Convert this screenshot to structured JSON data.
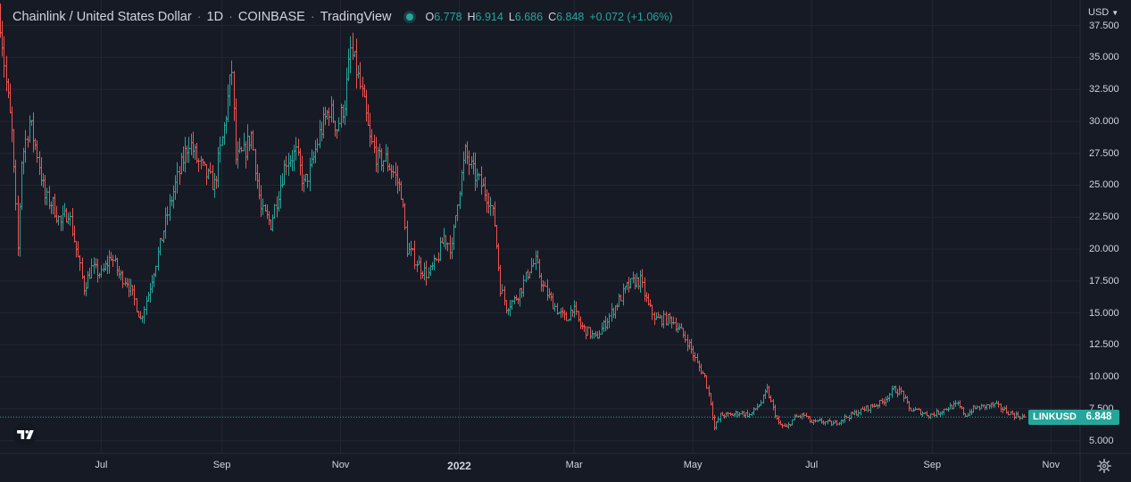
{
  "header": {
    "symbol_name": "Chainlink / United States Dollar",
    "interval": "1D",
    "exchange": "COINBASE",
    "platform": "TradingView",
    "ohlc": {
      "open_label": "O",
      "open": "6.778",
      "high_label": "H",
      "high": "6.914",
      "low_label": "L",
      "low": "6.686",
      "close_label": "C",
      "close": "6.848",
      "change": "+0.072 (+1.06%)"
    }
  },
  "price_scale": {
    "currency": "USD"
  },
  "last_price": {
    "symbol": "LINKUSD",
    "value": "6.848"
  },
  "colors": {
    "background": "#161a25",
    "grid": "#242733",
    "up": "#26a69a",
    "down": "#ef5350",
    "text": "#d1d4dc"
  },
  "icons": {
    "logo": "tradingview-logo-icon",
    "settings": "gear-icon",
    "dropdown": "chevron-down-icon"
  },
  "chart_data": {
    "type": "ohlc",
    "title": "Chainlink / United States Dollar · 1D · COINBASE",
    "ylim": [
      4.0,
      39.5
    ],
    "x_range": [
      "2021-05-10",
      "2022-11-16"
    ],
    "ytick_labels": [
      "5.000",
      "7.500",
      "10.000",
      "12.500",
      "15.000",
      "17.500",
      "20.000",
      "22.500",
      "25.000",
      "27.500",
      "30.000",
      "32.500",
      "35.000",
      "37.500"
    ],
    "y_ticks": [
      5,
      7.5,
      10,
      12.5,
      15,
      17.5,
      20,
      22.5,
      25,
      27.5,
      30,
      32.5,
      35,
      37.5
    ],
    "xtick_labels": [
      "Jul",
      "Sep",
      "Nov",
      "2022",
      "Mar",
      "May",
      "Jul",
      "Sep",
      "Nov"
    ],
    "x_ticks": [
      "2021-07-01",
      "2021-09-01",
      "2021-11-01",
      "2022-01-01",
      "2022-03-01",
      "2022-05-01",
      "2022-07-01",
      "2022-09-01",
      "2022-11-01"
    ],
    "grid": true,
    "last_close": 6.848,
    "series": [
      {
        "date_start": "2021-05-10",
        "date_end": "2022-10-18",
        "close_path": [
          [
            "2021-05-10",
            38.0
          ],
          [
            "2021-05-13",
            33.0
          ],
          [
            "2021-05-16",
            29.0
          ],
          [
            "2021-05-19",
            20.0
          ],
          [
            "2021-05-21",
            27.0
          ],
          [
            "2021-05-25",
            30.0
          ],
          [
            "2021-05-29",
            27.5
          ],
          [
            "2021-06-02",
            24.0
          ],
          [
            "2021-06-06",
            23.5
          ],
          [
            "2021-06-10",
            22.0
          ],
          [
            "2021-06-14",
            23.0
          ],
          [
            "2021-06-18",
            20.0
          ],
          [
            "2021-06-22",
            17.0
          ],
          [
            "2021-06-26",
            18.5
          ],
          [
            "2021-07-01",
            18.0
          ],
          [
            "2021-07-06",
            19.5
          ],
          [
            "2021-07-10",
            18.0
          ],
          [
            "2021-07-14",
            17.5
          ],
          [
            "2021-07-18",
            16.0
          ],
          [
            "2021-07-21",
            14.5
          ],
          [
            "2021-07-25",
            16.5
          ],
          [
            "2021-07-29",
            19.0
          ],
          [
            "2021-08-02",
            21.5
          ],
          [
            "2021-08-06",
            24.0
          ],
          [
            "2021-08-10",
            26.0
          ],
          [
            "2021-08-15",
            28.5
          ],
          [
            "2021-08-19",
            27.0
          ],
          [
            "2021-08-23",
            26.0
          ],
          [
            "2021-08-28",
            25.0
          ],
          [
            "2021-09-02",
            29.5
          ],
          [
            "2021-09-06",
            34.0
          ],
          [
            "2021-09-08",
            27.0
          ],
          [
            "2021-09-12",
            27.5
          ],
          [
            "2021-09-16",
            29.0
          ],
          [
            "2021-09-21",
            23.0
          ],
          [
            "2021-09-26",
            22.0
          ],
          [
            "2021-09-30",
            24.5
          ],
          [
            "2021-10-04",
            27.0
          ],
          [
            "2021-10-09",
            27.5
          ],
          [
            "2021-10-13",
            25.0
          ],
          [
            "2021-10-17",
            26.5
          ],
          [
            "2021-10-21",
            29.0
          ],
          [
            "2021-10-26",
            31.0
          ],
          [
            "2021-10-30",
            29.5
          ],
          [
            "2021-11-03",
            31.5
          ],
          [
            "2021-11-06",
            35.5
          ],
          [
            "2021-11-09",
            34.0
          ],
          [
            "2021-11-12",
            32.0
          ],
          [
            "2021-11-16",
            28.5
          ],
          [
            "2021-11-20",
            27.0
          ],
          [
            "2021-11-24",
            27.0
          ],
          [
            "2021-11-28",
            26.0
          ],
          [
            "2021-12-02",
            24.5
          ],
          [
            "2021-12-05",
            20.0
          ],
          [
            "2021-12-08",
            19.5
          ],
          [
            "2021-12-12",
            18.5
          ],
          [
            "2021-12-16",
            18.0
          ],
          [
            "2021-12-20",
            19.0
          ],
          [
            "2021-12-24",
            21.0
          ],
          [
            "2021-12-28",
            20.0
          ],
          [
            "2021-12-31",
            24.0
          ],
          [
            "2022-01-04",
            27.5
          ],
          [
            "2022-01-08",
            26.0
          ],
          [
            "2022-01-12",
            25.0
          ],
          [
            "2022-01-16",
            24.0
          ],
          [
            "2022-01-19",
            22.0
          ],
          [
            "2022-01-22",
            17.0
          ],
          [
            "2022-01-25",
            15.5
          ],
          [
            "2022-01-29",
            16.0
          ],
          [
            "2022-02-02",
            17.0
          ],
          [
            "2022-02-06",
            18.5
          ],
          [
            "2022-02-09",
            19.0
          ],
          [
            "2022-02-13",
            17.0
          ],
          [
            "2022-02-17",
            16.0
          ],
          [
            "2022-02-21",
            15.0
          ],
          [
            "2022-02-25",
            14.5
          ],
          [
            "2022-02-28",
            15.5
          ],
          [
            "2022-03-04",
            14.0
          ],
          [
            "2022-03-08",
            13.5
          ],
          [
            "2022-03-12",
            13.0
          ],
          [
            "2022-03-16",
            14.0
          ],
          [
            "2022-03-20",
            15.0
          ],
          [
            "2022-03-24",
            16.0
          ],
          [
            "2022-03-28",
            17.0
          ],
          [
            "2022-04-01",
            17.5
          ],
          [
            "2022-04-04",
            17.5
          ],
          [
            "2022-04-08",
            15.5
          ],
          [
            "2022-04-12",
            14.5
          ],
          [
            "2022-04-16",
            14.5
          ],
          [
            "2022-04-20",
            14.5
          ],
          [
            "2022-04-25",
            13.5
          ],
          [
            "2022-04-29",
            12.5
          ],
          [
            "2022-05-03",
            11.0
          ],
          [
            "2022-05-07",
            10.0
          ],
          [
            "2022-05-10",
            8.0
          ],
          [
            "2022-05-12",
            6.0
          ],
          [
            "2022-05-15",
            7.0
          ],
          [
            "2022-05-20",
            7.0
          ],
          [
            "2022-05-25",
            7.2
          ],
          [
            "2022-05-30",
            7.0
          ],
          [
            "2022-06-05",
            8.0
          ],
          [
            "2022-06-08",
            9.0
          ],
          [
            "2022-06-11",
            7.5
          ],
          [
            "2022-06-14",
            6.3
          ],
          [
            "2022-06-18",
            6.0
          ],
          [
            "2022-06-22",
            6.8
          ],
          [
            "2022-06-27",
            7.0
          ],
          [
            "2022-07-01",
            6.4
          ],
          [
            "2022-07-06",
            6.5
          ],
          [
            "2022-07-12",
            6.3
          ],
          [
            "2022-07-18",
            6.8
          ],
          [
            "2022-07-24",
            7.2
          ],
          [
            "2022-07-30",
            7.6
          ],
          [
            "2022-08-06",
            8.0
          ],
          [
            "2022-08-12",
            9.0
          ],
          [
            "2022-08-16",
            8.8
          ],
          [
            "2022-08-20",
            7.5
          ],
          [
            "2022-08-25",
            7.3
          ],
          [
            "2022-08-30",
            7.0
          ],
          [
            "2022-09-04",
            7.2
          ],
          [
            "2022-09-09",
            7.6
          ],
          [
            "2022-09-14",
            7.8
          ],
          [
            "2022-09-18",
            7.0
          ],
          [
            "2022-09-22",
            7.5
          ],
          [
            "2022-09-28",
            7.7
          ],
          [
            "2022-10-03",
            7.8
          ],
          [
            "2022-10-08",
            7.4
          ],
          [
            "2022-10-13",
            7.0
          ],
          [
            "2022-10-18",
            6.85
          ]
        ]
      }
    ]
  }
}
